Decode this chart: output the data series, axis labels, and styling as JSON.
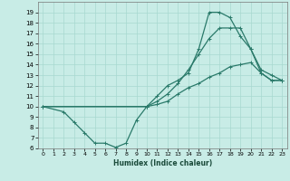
{
  "xlabel": "Humidex (Indice chaleur)",
  "bg_color": "#c8ece6",
  "grid_color": "#a8d8d0",
  "line_color": "#2a7a6a",
  "ylim": [
    6,
    20
  ],
  "xlim": [
    -0.5,
    23.5
  ],
  "yticks": [
    6,
    7,
    8,
    9,
    10,
    11,
    12,
    13,
    14,
    15,
    16,
    17,
    18,
    19
  ],
  "xticks": [
    0,
    1,
    2,
    3,
    4,
    5,
    6,
    7,
    8,
    9,
    10,
    11,
    12,
    13,
    14,
    15,
    16,
    17,
    18,
    19,
    20,
    21,
    22,
    23
  ],
  "line1_x": [
    0,
    2,
    3,
    4,
    5,
    6,
    7,
    8,
    9,
    10,
    11,
    12,
    13,
    14,
    15,
    16,
    17,
    18,
    19,
    20,
    21,
    22,
    23
  ],
  "line1_y": [
    10,
    9.5,
    8.5,
    7.5,
    6.5,
    6.5,
    6.1,
    6.5,
    8.7,
    10.0,
    11.0,
    12.0,
    12.5,
    13.2,
    15.5,
    19.0,
    19.0,
    18.5,
    16.7,
    15.5,
    13.5,
    13.0,
    12.5
  ],
  "line2_x": [
    0,
    10,
    11,
    12,
    13,
    14,
    15,
    16,
    17,
    18,
    19,
    20,
    21,
    22,
    23
  ],
  "line2_y": [
    10,
    10.0,
    10.5,
    11.2,
    12.2,
    13.5,
    15.0,
    16.5,
    17.5,
    17.5,
    17.5,
    15.5,
    13.2,
    12.5,
    12.5
  ],
  "line3_x": [
    0,
    10,
    11,
    12,
    13,
    14,
    15,
    16,
    17,
    18,
    19,
    20,
    21,
    22,
    23
  ],
  "line3_y": [
    10,
    10.0,
    10.2,
    10.5,
    11.2,
    11.8,
    12.2,
    12.8,
    13.2,
    13.8,
    14.0,
    14.2,
    13.2,
    12.5,
    12.5
  ],
  "marker": "+"
}
